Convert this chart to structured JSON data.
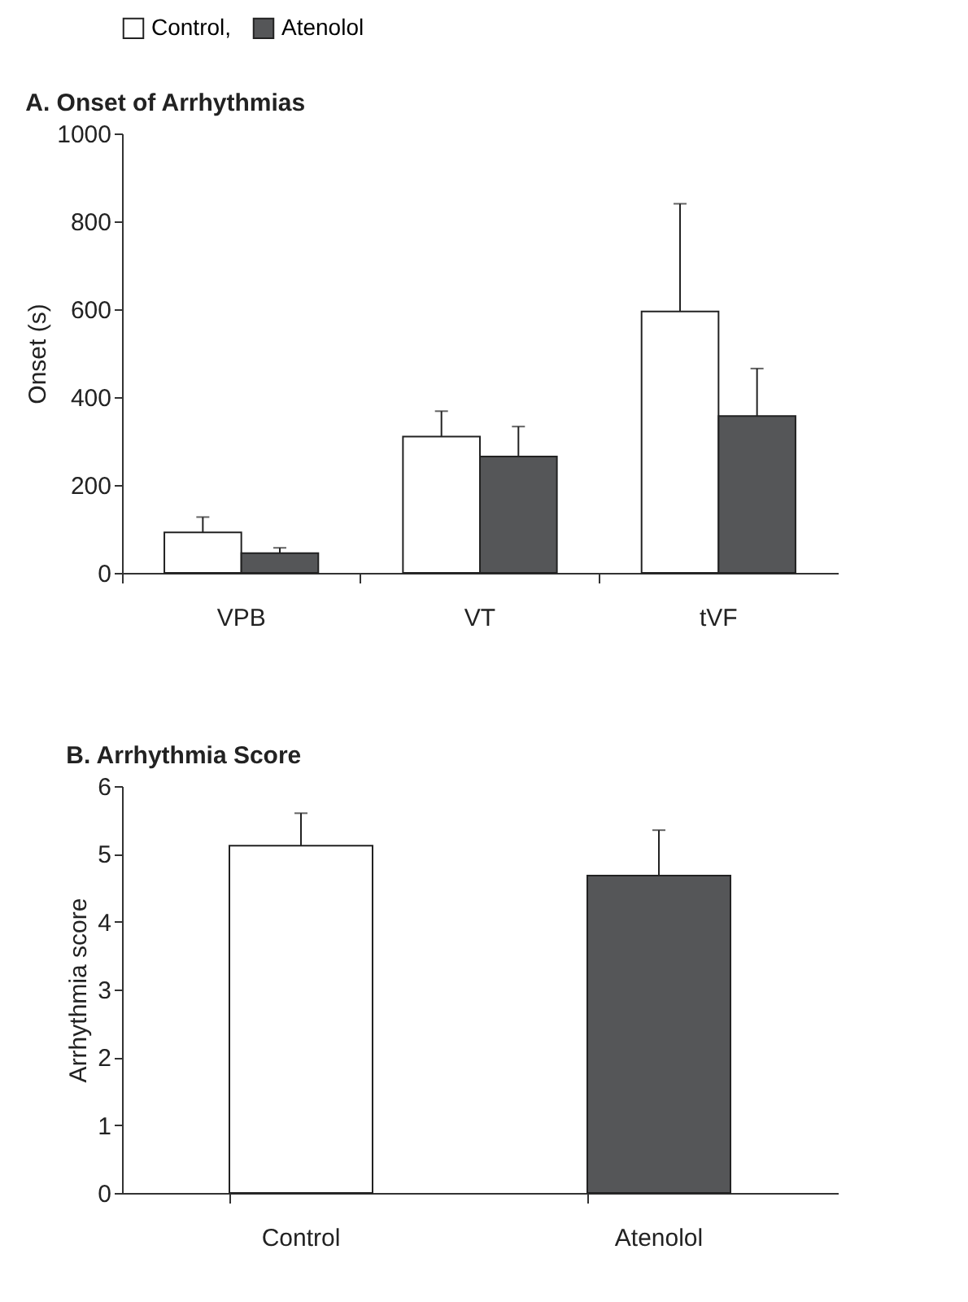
{
  "chart_data": [
    {
      "type": "bar",
      "title": "A. Onset of Arrhythmias",
      "ylabel": "Onset (s)",
      "categories": [
        "VPB",
        "VT",
        "tVF"
      ],
      "legend": "top",
      "series": [
        {
          "name": "Control,",
          "color": "#ffffff",
          "values": [
            92,
            310,
            595
          ],
          "errors": [
            [
              92,
              127
            ],
            [
              310,
              368
            ],
            [
              595,
              840
            ]
          ]
        },
        {
          "name": "Atenolol",
          "color": "#555658",
          "values": [
            45,
            265,
            357
          ],
          "errors": [
            [
              45,
              57
            ],
            [
              265,
              333
            ],
            [
              357,
              465
            ]
          ]
        }
      ],
      "ylim": [
        0,
        1000
      ],
      "yticks": [
        0,
        200,
        400,
        600,
        800,
        1000
      ]
    },
    {
      "type": "bar",
      "title": "B. Arrhythmia Score",
      "ylabel": "Arrhythmia score",
      "categories": [
        "Control",
        "Atenolol"
      ],
      "values": [
        5.12,
        4.68
      ],
      "colors": [
        "#ffffff",
        "#555658"
      ],
      "errors": [
        [
          5.12,
          5.6
        ],
        [
          4.68,
          5.35
        ]
      ],
      "ylim": [
        0,
        6
      ],
      "yticks": [
        0,
        1,
        2,
        3,
        4,
        5,
        6
      ]
    }
  ]
}
